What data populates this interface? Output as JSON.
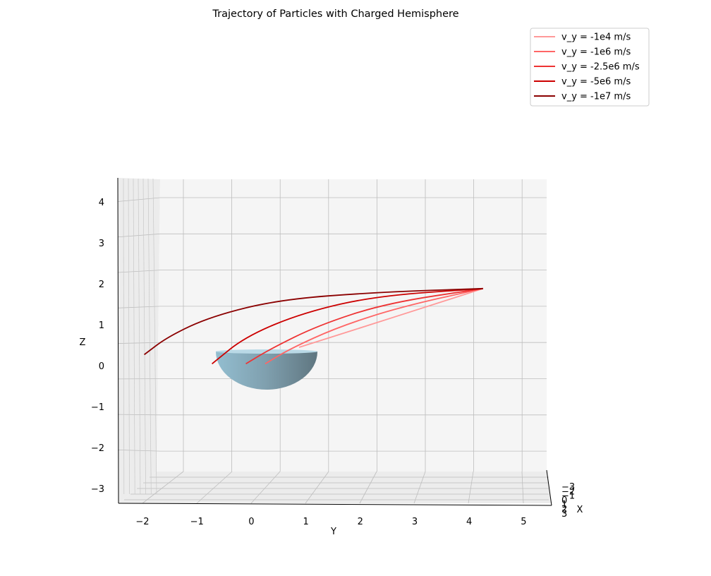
{
  "chart_data": {
    "type": "line",
    "projection": "3d",
    "title": "Trajectory of Particles with Charged Hemisphere",
    "xlabel": "X",
    "ylabel": "Y",
    "zlabel": "Z",
    "y_ticks": [
      "−2",
      "−1",
      "0",
      "1",
      "2",
      "3",
      "4",
      "5"
    ],
    "z_ticks": [
      "4",
      "3",
      "2",
      "1",
      "0",
      "−1",
      "−2",
      "−3"
    ],
    "x_ticks": [
      "−3",
      "−2",
      "−1",
      "0",
      "1",
      "2",
      "3"
    ],
    "grid": true,
    "legend_placement": "top-right",
    "hemisphere": {
      "label": "",
      "color": "#8fb3c4"
    },
    "series": [
      {
        "name": "v_y = -1e4 m/s",
        "color": "#ff9999",
        "points": [
          [
            5.2,
            2.1
          ],
          [
            3.9,
            1.55
          ],
          [
            2.6,
            1.0
          ],
          [
            1.4,
            0.5
          ]
        ]
      },
      {
        "name": "v_y = -1e6 m/s",
        "color": "#ff6666",
        "points": [
          [
            5.2,
            2.1
          ],
          [
            3.5,
            1.6
          ],
          [
            2.2,
            1.05
          ],
          [
            1.2,
            0.45
          ],
          [
            0.7,
            0.05
          ]
        ]
      },
      {
        "name": "v_y = -2.5e6 m/s",
        "color": "#ee3333",
        "points": [
          [
            5.2,
            2.1
          ],
          [
            3.2,
            1.7
          ],
          [
            1.8,
            1.1
          ],
          [
            0.8,
            0.45
          ],
          [
            0.3,
            0.05
          ]
        ]
      },
      {
        "name": "v_y = -5e6 m/s",
        "color": "#cc0000",
        "points": [
          [
            5.2,
            2.1
          ],
          [
            3.0,
            1.9
          ],
          [
            1.5,
            1.45
          ],
          [
            0.3,
            0.8
          ],
          [
            -0.4,
            0.05
          ]
        ]
      },
      {
        "name": "v_y = -1e7 m/s",
        "color": "#8b0000",
        "points": [
          [
            5.2,
            2.1
          ],
          [
            3.0,
            2.0
          ],
          [
            1.0,
            1.8
          ],
          [
            -0.4,
            1.35
          ],
          [
            -1.3,
            0.8
          ],
          [
            -1.8,
            0.3
          ]
        ]
      }
    ]
  }
}
